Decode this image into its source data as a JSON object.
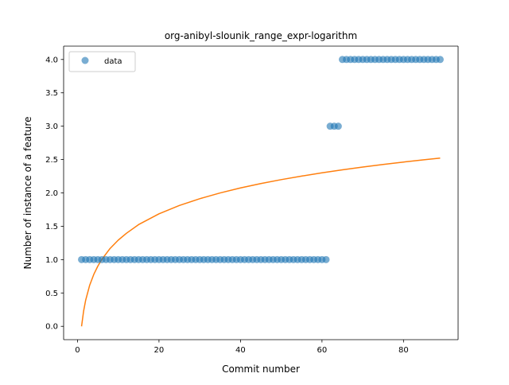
{
  "chart_data": {
    "type": "scatter",
    "title": "org-anibyl-slounik_range_expr-logarithm",
    "xlabel": "Commit number",
    "ylabel": "Number of instance of a feature",
    "xlim": [
      -3.4,
      93.4
    ],
    "ylim": [
      -0.2,
      4.2
    ],
    "x_ticks": [
      0,
      20,
      40,
      60,
      80
    ],
    "x_tick_labels": [
      "0",
      "20",
      "40",
      "60",
      "80"
    ],
    "y_ticks": [
      0.0,
      0.5,
      1.0,
      1.5,
      2.0,
      2.5,
      3.0,
      3.5,
      4.0
    ],
    "y_tick_labels": [
      "0.0",
      "0.5",
      "1.0",
      "1.5",
      "2.0",
      "2.5",
      "3.0",
      "3.5",
      "4.0"
    ],
    "grid": false,
    "legend": {
      "placement": "top-left",
      "entries": [
        "data"
      ]
    },
    "series": [
      {
        "name": "data",
        "kind": "scatter",
        "color": "#1f77b4",
        "x": [
          1,
          2,
          3,
          4,
          5,
          6,
          7,
          8,
          9,
          10,
          11,
          12,
          13,
          14,
          15,
          16,
          17,
          18,
          19,
          20,
          21,
          22,
          23,
          24,
          25,
          26,
          27,
          28,
          29,
          30,
          31,
          32,
          33,
          34,
          35,
          36,
          37,
          38,
          39,
          40,
          41,
          42,
          43,
          44,
          45,
          46,
          47,
          48,
          49,
          50,
          51,
          52,
          53,
          54,
          55,
          56,
          57,
          58,
          59,
          60,
          61,
          62,
          63,
          64,
          65,
          66,
          67,
          68,
          69,
          70,
          71,
          72,
          73,
          74,
          75,
          76,
          77,
          78,
          79,
          80,
          81,
          82,
          83,
          84,
          85,
          86,
          87,
          88,
          89
        ],
        "y": [
          1,
          1,
          1,
          1,
          1,
          1,
          1,
          1,
          1,
          1,
          1,
          1,
          1,
          1,
          1,
          1,
          1,
          1,
          1,
          1,
          1,
          1,
          1,
          1,
          1,
          1,
          1,
          1,
          1,
          1,
          1,
          1,
          1,
          1,
          1,
          1,
          1,
          1,
          1,
          1,
          1,
          1,
          1,
          1,
          1,
          1,
          1,
          1,
          1,
          1,
          1,
          1,
          1,
          1,
          1,
          1,
          1,
          1,
          1,
          1,
          1,
          3,
          3,
          3,
          4,
          4,
          4,
          4,
          4,
          4,
          4,
          4,
          4,
          4,
          4,
          4,
          4,
          4,
          4,
          4,
          4,
          4,
          4,
          4,
          4,
          4,
          4,
          4,
          4
        ]
      },
      {
        "kind": "line",
        "color": "#ff7f0e",
        "x": [
          1,
          1.5,
          2,
          3,
          4,
          5,
          6,
          8,
          10,
          12,
          15,
          20,
          25,
          30,
          35,
          40,
          45,
          50,
          55,
          60,
          65,
          70,
          75,
          80,
          85,
          89
        ],
        "y": [
          0.0,
          0.227,
          0.389,
          0.617,
          0.778,
          0.903,
          1.005,
          1.167,
          1.292,
          1.394,
          1.525,
          1.686,
          1.811,
          1.913,
          1.999,
          2.074,
          2.14,
          2.199,
          2.252,
          2.301,
          2.346,
          2.387,
          2.426,
          2.462,
          2.496,
          2.522
        ]
      }
    ]
  }
}
